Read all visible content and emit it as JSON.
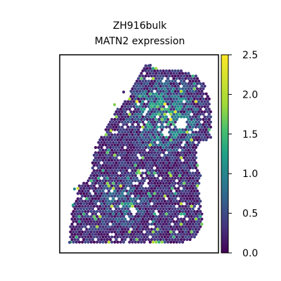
{
  "chart_data": {
    "type": "scatter",
    "subtype": "spatial-hexbin",
    "title_lines": [
      "ZH916bulk",
      "MATN2 expression"
    ],
    "xlabel": "",
    "ylabel": "",
    "grid": false,
    "colormap": "viridis",
    "colorbar": {
      "range": [
        0.0,
        2.5
      ],
      "ticks": [
        "0.0",
        "0.5",
        "1.0",
        "1.5",
        "2.0",
        "2.5"
      ],
      "tick_values": [
        0.0,
        0.5,
        1.0,
        1.5,
        2.0,
        2.5
      ],
      "placement": "right"
    },
    "value_range": [
      0.0,
      2.5
    ],
    "colors": {
      "low": "#440154",
      "mid": "#21918c",
      "high": "#fde725"
    }
  }
}
